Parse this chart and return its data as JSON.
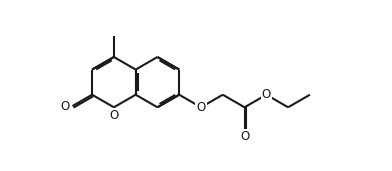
{
  "figsize": [
    3.92,
    1.71
  ],
  "dpi": 100,
  "bg": "#ffffff",
  "lc": "#1a1a1a",
  "lw": 1.5,
  "xlim": [
    -0.5,
    10.5
  ],
  "ylim": [
    -0.3,
    4.8
  ],
  "bl": 0.75,
  "doff": 0.055,
  "dsh": 0.14
}
